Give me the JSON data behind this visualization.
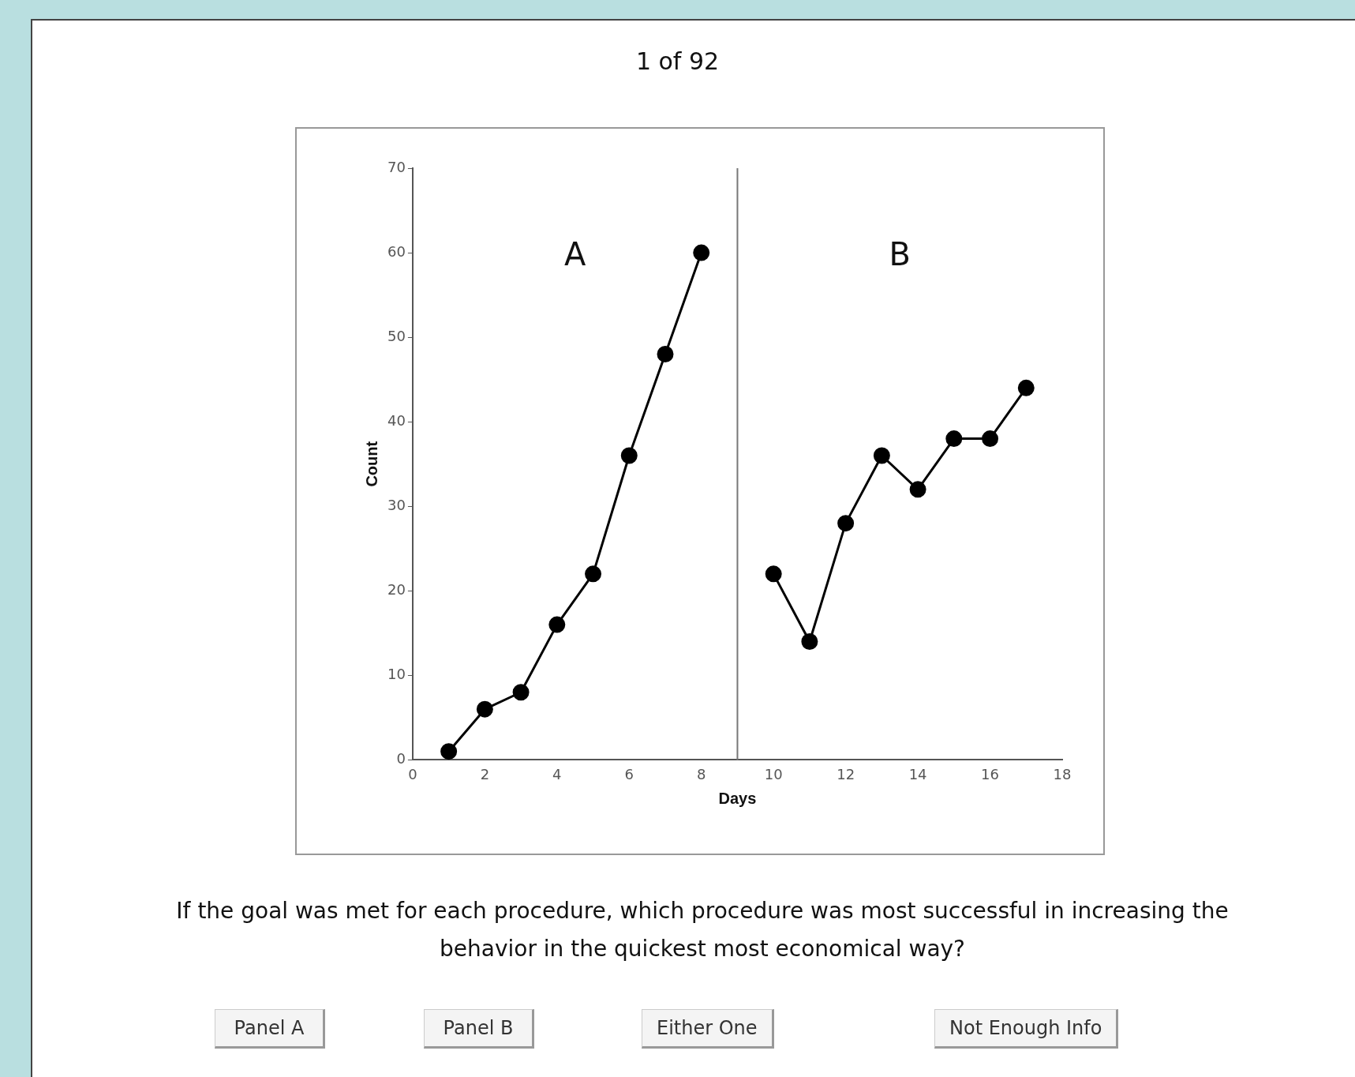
{
  "chart_data": {
    "type": "line",
    "title": "1 of 92",
    "xlabel": "Days",
    "ylabel": "Count",
    "series": [
      {
        "color": "#000000",
        "x": [
          1,
          2,
          3,
          4,
          5,
          6,
          7,
          8
        ],
        "values": [
          1,
          6,
          8,
          16,
          22,
          36,
          48,
          60
        ]
      },
      {
        "color": "#000000",
        "x": [
          10,
          11,
          12,
          13,
          14,
          15,
          16,
          17
        ],
        "values": [
          22,
          14,
          28,
          36,
          32,
          38,
          38,
          44
        ]
      }
    ],
    "xlim": [
      0,
      18
    ],
    "xticks": [
      0,
      2,
      4,
      6,
      8,
      10,
      12,
      14,
      16,
      18
    ],
    "ylim": [
      0,
      70
    ],
    "yticks": [
      0,
      10,
      20,
      30,
      40,
      50,
      60,
      70
    ],
    "grid": false,
    "legend": false,
    "marker": "circle",
    "line_style": "solid",
    "ref_lines": [
      {
        "axis": "x",
        "value": 9,
        "color": "#777777"
      }
    ],
    "annotations": [
      "A",
      "B",
      "If the goal was met for each procedure, which procedure was most successful in increasing the behavior in the quickest most economical way?",
      "Panel A",
      "Panel B",
      "Either One",
      "Not Enough Info"
    ]
  }
}
